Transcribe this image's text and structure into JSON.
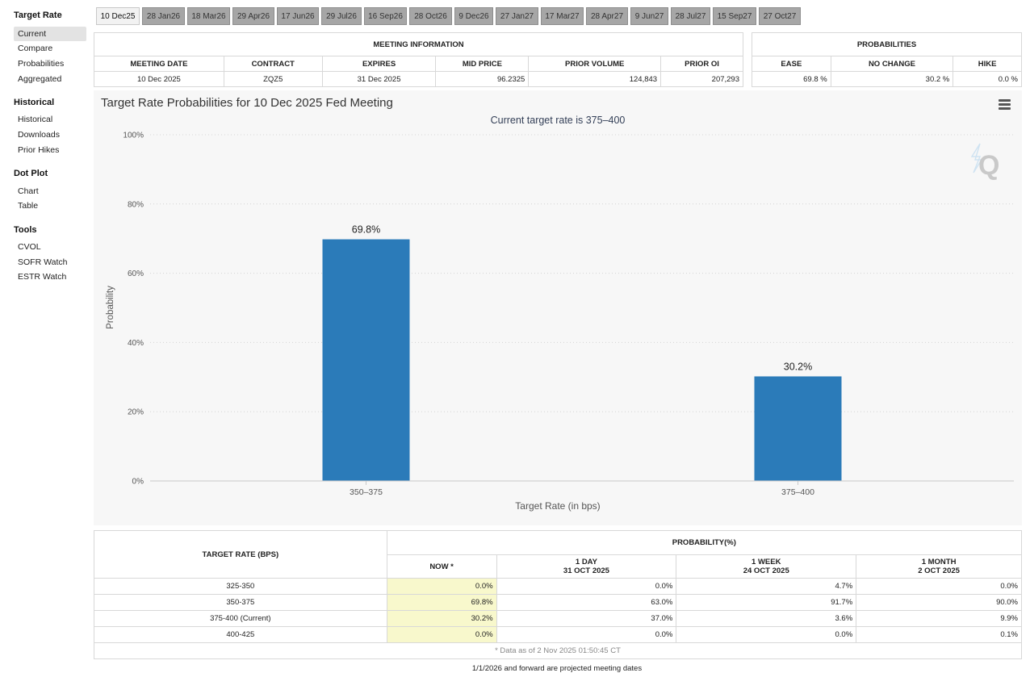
{
  "sidebar": {
    "sections": [
      {
        "title": "Target Rate",
        "items": [
          "Current",
          "Compare",
          "Probabilities",
          "Aggregated"
        ]
      },
      {
        "title": "Historical",
        "items": [
          "Historical",
          "Downloads",
          "Prior Hikes"
        ]
      },
      {
        "title": "Dot Plot",
        "items": [
          "Chart",
          "Table"
        ]
      },
      {
        "title": "Tools",
        "items": [
          "CVOL",
          "SOFR Watch",
          "ESTR Watch"
        ]
      }
    ]
  },
  "tabs": [
    "10 Dec25",
    "28 Jan26",
    "18 Mar26",
    "29 Apr26",
    "17 Jun26",
    "29 Jul26",
    "16 Sep26",
    "28 Oct26",
    "9 Dec26",
    "27 Jan27",
    "17 Mar27",
    "28 Apr27",
    "9 Jun27",
    "28 Jul27",
    "15 Sep27",
    "27 Oct27"
  ],
  "meeting": {
    "caption": "MEETING INFORMATION",
    "headers": [
      "MEETING DATE",
      "CONTRACT",
      "EXPIRES",
      "MID PRICE",
      "PRIOR VOLUME",
      "PRIOR OI"
    ],
    "row": [
      "10 Dec 2025",
      "ZQZ5",
      "31 Dec 2025",
      "96.2325",
      "124,843",
      "207,293"
    ]
  },
  "probabilities": {
    "caption": "PROBABILITIES",
    "headers": [
      "EASE",
      "NO CHANGE",
      "HIKE"
    ],
    "row": [
      "69.8 %",
      "30.2 %",
      "0.0 %"
    ]
  },
  "chart_title": "Target Rate Probabilities for 10 Dec 2025 Fed Meeting",
  "chart_data": {
    "type": "bar",
    "title": "Target Rate Probabilities for 10 Dec 2025 Fed Meeting",
    "subtitle": "Current target rate is 375–400",
    "categories": [
      "350–375",
      "375–400"
    ],
    "values": [
      69.8,
      30.2
    ],
    "data_labels": [
      "69.8%",
      "30.2%"
    ],
    "xlabel": "Target Rate (in bps)",
    "ylabel": "Probability",
    "ylim": [
      0,
      100
    ],
    "yticks": [
      0,
      20,
      40,
      60,
      80,
      100
    ],
    "ytick_labels": [
      "0%",
      "20%",
      "40%",
      "60%",
      "80%",
      "100%"
    ],
    "grid": true,
    "bar_color": "#2b7bb9"
  },
  "bottom": {
    "col_target": "TARGET RATE (BPS)",
    "prob_caption": "PROBABILITY(%)",
    "col_now": "NOW *",
    "col_1day": [
      "1 DAY",
      "31 OCT 2025"
    ],
    "col_1week": [
      "1 WEEK",
      "24 OCT 2025"
    ],
    "col_1month": [
      "1 MONTH",
      "2 OCT 2025"
    ],
    "rows": [
      [
        "325-350",
        "0.0%",
        "0.0%",
        "4.7%",
        "0.0%"
      ],
      [
        "350-375",
        "69.8%",
        "63.0%",
        "91.7%",
        "90.0%"
      ],
      [
        "375-400 (Current)",
        "30.2%",
        "37.0%",
        "3.6%",
        "9.9%"
      ],
      [
        "400-425",
        "0.0%",
        "0.0%",
        "0.0%",
        "0.1%"
      ]
    ],
    "footnote": "* Data as of 2 Nov 2025 01:50:45 CT",
    "note": "1/1/2026 and forward are projected meeting dates"
  }
}
